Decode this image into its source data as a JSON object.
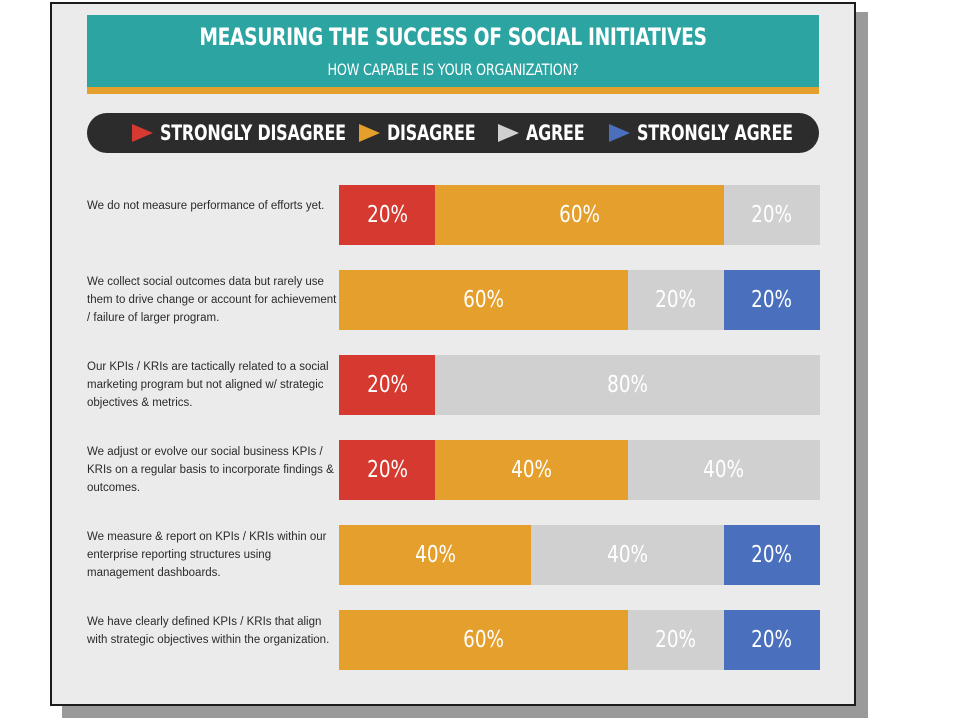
{
  "title": "MEASURING THE SUCCESS OF SOCIAL INITIATIVES",
  "subtitle": "HOW CAPABLE IS YOUR ORGANIZATION?",
  "colors": {
    "header": "#2ba4a2",
    "header_strip": "#e49f2d",
    "legend_bg": "#2c2c2c",
    "strongly_disagree": "#d6392f",
    "disagree": "#e49f2d",
    "agree": "#d0d0d0",
    "strongly_agree": "#4a6fbd"
  },
  "chart_data": {
    "type": "bar",
    "orientation": "horizontal",
    "stacked": true,
    "title": "MEASURING THE SUCCESS OF SOCIAL INITIATIVES",
    "subtitle": "HOW CAPABLE IS YOUR ORGANIZATION?",
    "legend_position": "top",
    "value_suffix": "%",
    "categories": [
      "We do not measure performance of efforts yet.",
      "We collect social outcomes data but rarely use them to drive change or account for achievement / failure of larger program.",
      "Our KPIs / KRIs are tactically related to a social marketing program but not aligned w/ strategic objectives & metrics.",
      "We adjust or evolve our social business KPIs / KRIs on a regular basis to incorporate findings & outcomes.",
      "We measure & report on KPIs / KRIs within our enterprise reporting structures using management dashboards.",
      "We have clearly defined KPIs / KRIs that align with strategic objectives within the organization."
    ],
    "series": [
      {
        "name": "STRONGLY DISAGREE",
        "color": "#d6392f",
        "values": [
          20,
          0,
          20,
          20,
          0,
          0
        ]
      },
      {
        "name": "DISAGREE",
        "color": "#e49f2d",
        "values": [
          60,
          60,
          0,
          40,
          40,
          60
        ]
      },
      {
        "name": "AGREE",
        "color": "#d0d0d0",
        "values": [
          20,
          20,
          80,
          40,
          40,
          20
        ]
      },
      {
        "name": "STRONGLY AGREE",
        "color": "#4a6fbd",
        "values": [
          0,
          20,
          0,
          0,
          20,
          20
        ]
      }
    ]
  }
}
